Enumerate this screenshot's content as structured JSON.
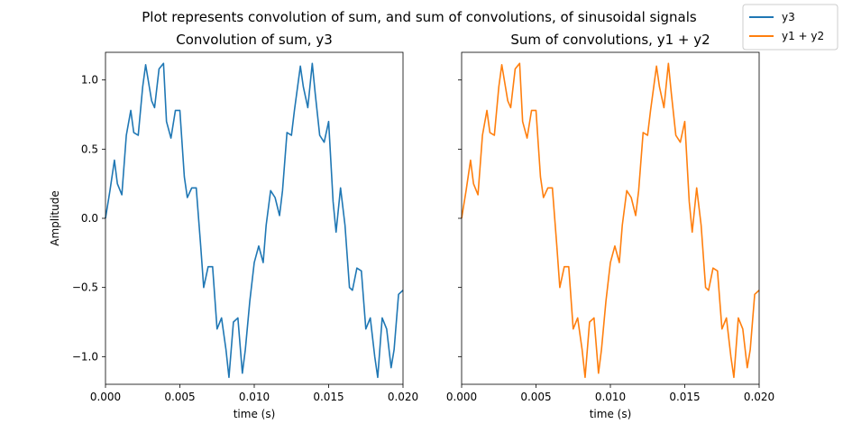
{
  "figure": {
    "suptitle": "Plot represents convolution of sum, and sum of convolutions, of sinusoidal signals"
  },
  "legend": {
    "placement": "top-right",
    "entries": [
      {
        "label": "y3",
        "color": "#1f77b4"
      },
      {
        "label": "y1 + y2",
        "color": "#ff7f0e"
      }
    ]
  },
  "chart_data": [
    {
      "type": "line",
      "title": "Convolution of sum, y3",
      "xlabel": "time (s)",
      "ylabel": "Amplitude",
      "xlim": [
        0.0,
        0.02
      ],
      "ylim": [
        -1.2,
        1.2
      ],
      "xticks": [
        0.0,
        0.005,
        0.01,
        0.015,
        0.02
      ],
      "xtick_labels": [
        "0.000",
        "0.005",
        "0.010",
        "0.015",
        "0.020"
      ],
      "yticks": [
        -1.0,
        -0.5,
        0.0,
        0.5,
        1.0
      ],
      "ytick_labels": [
        "−1.0",
        "−0.5",
        "0.0",
        "0.5",
        "1.0"
      ],
      "grid": false,
      "series": [
        {
          "name": "y3",
          "color": "#1f77b4",
          "x": [
            0.0,
            0.0003,
            0.0006,
            0.0008,
            0.0011,
            0.0014,
            0.0017,
            0.0019,
            0.0022,
            0.0025,
            0.0027,
            0.0031,
            0.0033,
            0.0036,
            0.0039,
            0.0041,
            0.0044,
            0.0047,
            0.005,
            0.0053,
            0.0055,
            0.0058,
            0.0061,
            0.0064,
            0.0066,
            0.0069,
            0.0072,
            0.0075,
            0.0078,
            0.0081,
            0.0083,
            0.0086,
            0.0089,
            0.0092,
            0.0094,
            0.0097,
            0.01,
            0.0103,
            0.0106,
            0.0108,
            0.0111,
            0.0114,
            0.0117,
            0.0119,
            0.0122,
            0.0125,
            0.0127,
            0.0131,
            0.0133,
            0.0136,
            0.0139,
            0.0141,
            0.0144,
            0.0147,
            0.015,
            0.0153,
            0.0155,
            0.0158,
            0.0161,
            0.0164,
            0.0166,
            0.0169,
            0.0172,
            0.0175,
            0.0178,
            0.0181,
            0.0183,
            0.0186,
            0.0189,
            0.0192,
            0.0194,
            0.0197,
            0.02
          ],
          "y": [
            0.0,
            0.2,
            0.42,
            0.25,
            0.17,
            0.6,
            0.78,
            0.62,
            0.6,
            0.95,
            1.11,
            0.85,
            0.8,
            1.08,
            1.12,
            0.7,
            0.58,
            0.78,
            0.78,
            0.3,
            0.15,
            0.22,
            0.22,
            -0.2,
            -0.5,
            -0.35,
            -0.35,
            -0.8,
            -0.72,
            -0.95,
            -1.15,
            -0.75,
            -0.72,
            -1.12,
            -0.95,
            -0.6,
            -0.32,
            -0.2,
            -0.32,
            -0.05,
            0.2,
            0.15,
            0.02,
            0.2,
            0.62,
            0.6,
            0.78,
            1.1,
            0.95,
            0.8,
            1.12,
            0.9,
            0.6,
            0.55,
            0.7,
            0.12,
            -0.1,
            0.22,
            -0.05,
            -0.5,
            -0.52,
            -0.36,
            -0.38,
            -0.8,
            -0.72,
            -1.0,
            -1.15,
            -0.72,
            -0.8,
            -1.08,
            -0.95,
            -0.55,
            -0.52
          ]
        }
      ]
    },
    {
      "type": "line",
      "title": "Sum of convolutions, y1 + y2",
      "xlabel": "time (s)",
      "ylabel": "",
      "xlim": [
        0.0,
        0.02
      ],
      "ylim": [
        -1.2,
        1.2
      ],
      "xticks": [
        0.0,
        0.005,
        0.01,
        0.015,
        0.02
      ],
      "xtick_labels": [
        "0.000",
        "0.005",
        "0.010",
        "0.015",
        "0.020"
      ],
      "yticks": [
        -1.0,
        -0.5,
        0.0,
        0.5,
        1.0
      ],
      "ytick_labels": [],
      "grid": false,
      "series": [
        {
          "name": "y1 + y2",
          "color": "#ff7f0e",
          "x": [
            0.0,
            0.0003,
            0.0006,
            0.0008,
            0.0011,
            0.0014,
            0.0017,
            0.0019,
            0.0022,
            0.0025,
            0.0027,
            0.0031,
            0.0033,
            0.0036,
            0.0039,
            0.0041,
            0.0044,
            0.0047,
            0.005,
            0.0053,
            0.0055,
            0.0058,
            0.0061,
            0.0064,
            0.0066,
            0.0069,
            0.0072,
            0.0075,
            0.0078,
            0.0081,
            0.0083,
            0.0086,
            0.0089,
            0.0092,
            0.0094,
            0.0097,
            0.01,
            0.0103,
            0.0106,
            0.0108,
            0.0111,
            0.0114,
            0.0117,
            0.0119,
            0.0122,
            0.0125,
            0.0127,
            0.0131,
            0.0133,
            0.0136,
            0.0139,
            0.0141,
            0.0144,
            0.0147,
            0.015,
            0.0153,
            0.0155,
            0.0158,
            0.0161,
            0.0164,
            0.0166,
            0.0169,
            0.0172,
            0.0175,
            0.0178,
            0.0181,
            0.0183,
            0.0186,
            0.0189,
            0.0192,
            0.0194,
            0.0197,
            0.02
          ],
          "y": [
            0.0,
            0.2,
            0.42,
            0.25,
            0.17,
            0.6,
            0.78,
            0.62,
            0.6,
            0.95,
            1.11,
            0.85,
            0.8,
            1.08,
            1.12,
            0.7,
            0.58,
            0.78,
            0.78,
            0.3,
            0.15,
            0.22,
            0.22,
            -0.2,
            -0.5,
            -0.35,
            -0.35,
            -0.8,
            -0.72,
            -0.95,
            -1.15,
            -0.75,
            -0.72,
            -1.12,
            -0.95,
            -0.6,
            -0.32,
            -0.2,
            -0.32,
            -0.05,
            0.2,
            0.15,
            0.02,
            0.2,
            0.62,
            0.6,
            0.78,
            1.1,
            0.95,
            0.8,
            1.12,
            0.9,
            0.6,
            0.55,
            0.7,
            0.12,
            -0.1,
            0.22,
            -0.05,
            -0.5,
            -0.52,
            -0.36,
            -0.38,
            -0.8,
            -0.72,
            -1.0,
            -1.15,
            -0.72,
            -0.8,
            -1.08,
            -0.95,
            -0.55,
            -0.52
          ]
        }
      ]
    }
  ]
}
